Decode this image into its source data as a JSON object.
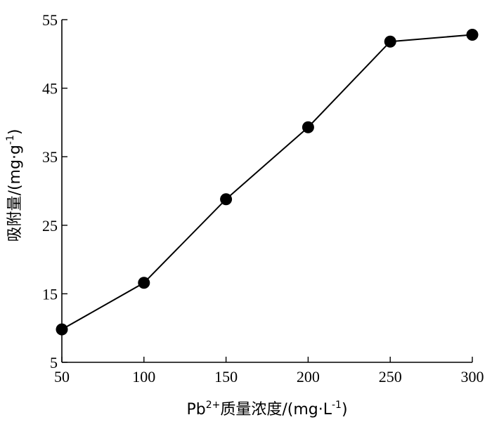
{
  "chart_data": {
    "type": "line",
    "x": [
      50,
      100,
      150,
      200,
      250,
      300
    ],
    "series": [
      {
        "values": [
          9.8,
          16.6,
          28.8,
          39.3,
          51.8,
          52.8
        ]
      }
    ],
    "xlabel_parts": [
      "Pb",
      "2+",
      "质量浓度/(mg·L",
      "-1",
      ")"
    ],
    "ylabel_parts": [
      "吸附量/(mg·g",
      "-1",
      ")"
    ],
    "xticks": [
      50,
      100,
      150,
      200,
      250,
      300
    ],
    "yticks": [
      5,
      15,
      25,
      35,
      45,
      55
    ],
    "xlim": [
      50,
      300
    ],
    "ylim": [
      5,
      55
    ],
    "grid": false,
    "marker": "filled-circle",
    "line_color": "#000000"
  }
}
